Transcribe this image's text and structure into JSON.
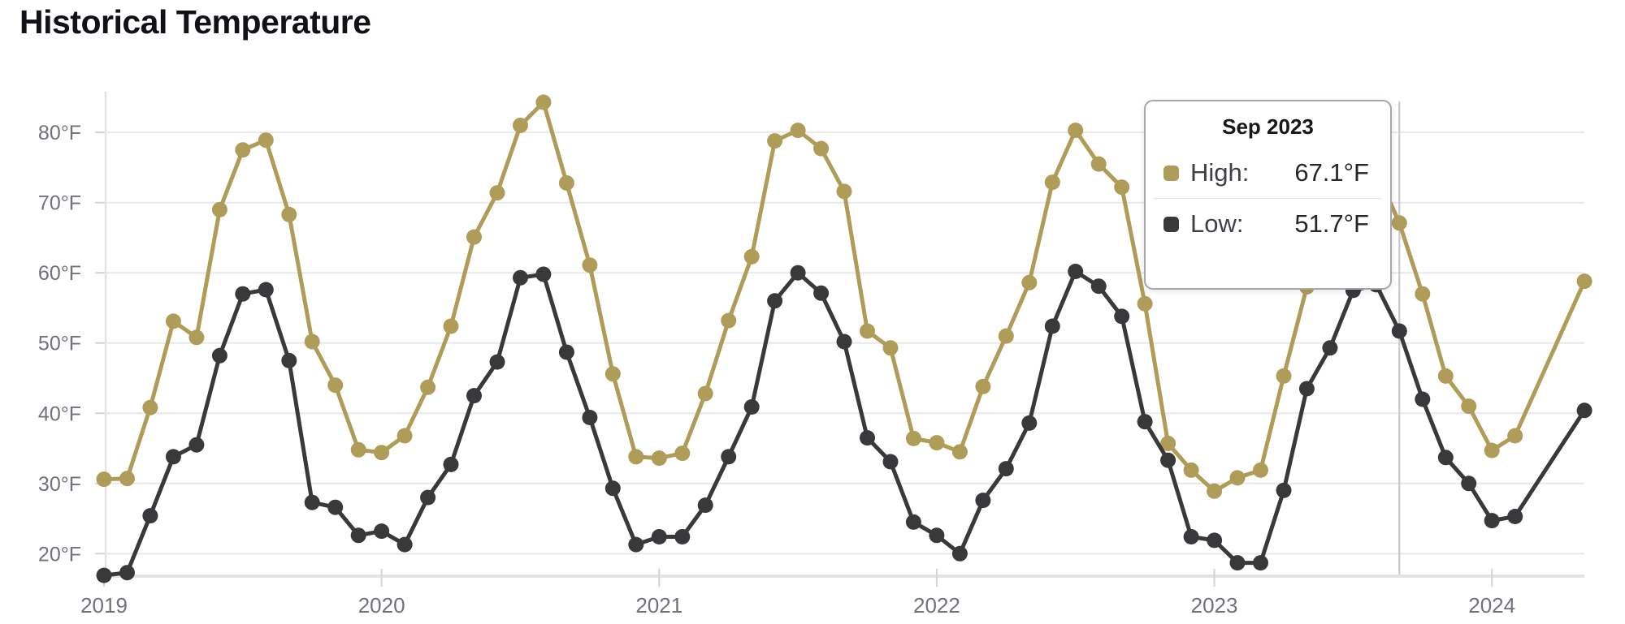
{
  "page": {
    "title": "Historical Temperature"
  },
  "tooltip": {
    "title": "Sep 2023",
    "rows": [
      {
        "series": "High",
        "label": "High:",
        "value": "67.1°F",
        "swatch_color": "#b09c59"
      },
      {
        "series": "Low",
        "label": "Low:",
        "value": "51.7°F",
        "swatch_color": "#39393b"
      }
    ]
  },
  "chart_data": {
    "type": "line",
    "title": "Historical Temperature",
    "x_interval": "monthly",
    "x_start": "2019-01",
    "x_end": "2024-05",
    "x_tick_labels": [
      "2019",
      "2020",
      "2021",
      "2022",
      "2023",
      "2024"
    ],
    "x_tick_month_indices": [
      0,
      12,
      24,
      36,
      48,
      60
    ],
    "y_tick_labels": [
      "20°F",
      "30°F",
      "40°F",
      "50°F",
      "60°F",
      "70°F",
      "80°F"
    ],
    "y_tick_values": [
      20,
      30,
      40,
      50,
      60,
      70,
      80
    ],
    "ylim": [
      16.8,
      85.8
    ],
    "grid": "horizontal",
    "legend_position": "tooltip-only",
    "hovered_point": {
      "month": "Sep 2023",
      "month_index": 56,
      "high": 67.1,
      "low": 51.7
    },
    "note_missing": "Mar 2024 and Apr 2024 are null (line connects Feb 2024 to May 2024)",
    "series": [
      {
        "name": "High",
        "color": "#b09c59",
        "values": [
          30.6,
          30.7,
          40.8,
          53.1,
          50.8,
          69.0,
          77.5,
          78.9,
          68.3,
          50.2,
          44.0,
          34.8,
          34.4,
          36.8,
          43.7,
          52.4,
          65.1,
          71.4,
          81.0,
          84.3,
          72.8,
          61.1,
          45.6,
          33.8,
          33.6,
          34.3,
          42.8,
          53.2,
          62.3,
          78.8,
          80.3,
          77.7,
          71.6,
          51.7,
          49.3,
          36.4,
          35.8,
          34.5,
          43.8,
          51.0,
          58.6,
          72.9,
          80.3,
          75.5,
          72.2,
          55.6,
          35.7,
          31.9,
          28.9,
          30.8,
          31.9,
          45.3,
          58.0,
          70.5,
          76.0,
          74.5,
          67.1,
          57.0,
          45.3,
          41.0,
          34.7,
          36.8,
          null,
          null,
          58.8
        ]
      },
      {
        "name": "Low",
        "color": "#39393b",
        "values": [
          16.9,
          17.3,
          25.4,
          33.8,
          35.5,
          48.2,
          57.0,
          57.6,
          47.5,
          27.3,
          26.6,
          22.6,
          23.2,
          21.3,
          28.0,
          32.7,
          42.5,
          47.3,
          59.3,
          59.8,
          48.7,
          39.4,
          29.3,
          21.3,
          22.4,
          22.4,
          26.9,
          33.8,
          40.9,
          56.0,
          60.0,
          57.1,
          50.2,
          36.5,
          33.1,
          24.5,
          22.6,
          20.0,
          27.6,
          32.1,
          38.6,
          52.4,
          60.2,
          58.1,
          53.8,
          38.8,
          33.3,
          22.4,
          21.9,
          18.7,
          18.7,
          29.0,
          43.5,
          49.3,
          57.5,
          58.3,
          51.7,
          42.0,
          33.7,
          30.0,
          24.7,
          25.3,
          null,
          null,
          40.4
        ]
      }
    ],
    "colors": {
      "grid_line": "#e8e8ea",
      "axis_line": "#e3e3e6",
      "tick_mark": "#d4d4d8",
      "axis_label": "#71717a",
      "crosshair": "#c6c6ca",
      "title_text": "#101217",
      "background": "#ffffff"
    }
  }
}
